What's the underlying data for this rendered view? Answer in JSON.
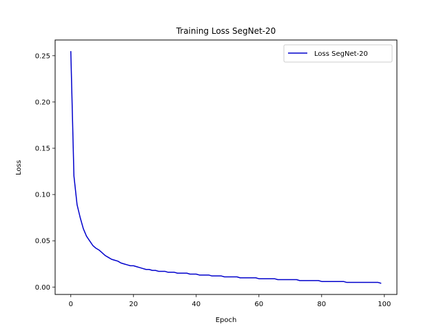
{
  "chart_data": {
    "type": "line",
    "title": "Training Loss SegNet-20",
    "xlabel": "Epoch",
    "ylabel": "Loss",
    "xlim": [
      -5,
      104
    ],
    "ylim": [
      -0.008,
      0.267
    ],
    "xticks": [
      0,
      20,
      40,
      60,
      80,
      100
    ],
    "xtick_labels": [
      "0",
      "20",
      "40",
      "60",
      "80",
      "100"
    ],
    "yticks": [
      0.0,
      0.05,
      0.1,
      0.15,
      0.2,
      0.25
    ],
    "ytick_labels": [
      "0.00",
      "0.05",
      "0.10",
      "0.15",
      "0.20",
      "0.25"
    ],
    "grid": false,
    "legend_position": "top-right",
    "series": [
      {
        "name": "Loss SegNet-20",
        "color": "#0000cc",
        "x": [
          0,
          1,
          2,
          3,
          4,
          5,
          6,
          7,
          8,
          9,
          10,
          11,
          12,
          13,
          14,
          15,
          16,
          17,
          18,
          19,
          20,
          21,
          22,
          23,
          24,
          25,
          26,
          27,
          28,
          29,
          30,
          31,
          32,
          33,
          34,
          35,
          36,
          37,
          38,
          39,
          40,
          41,
          42,
          43,
          44,
          45,
          46,
          47,
          48,
          49,
          50,
          51,
          52,
          53,
          54,
          55,
          56,
          57,
          58,
          59,
          60,
          61,
          62,
          63,
          64,
          65,
          66,
          67,
          68,
          69,
          70,
          71,
          72,
          73,
          74,
          75,
          76,
          77,
          78,
          79,
          80,
          81,
          82,
          83,
          84,
          85,
          86,
          87,
          88,
          89,
          90,
          91,
          92,
          93,
          94,
          95,
          96,
          97,
          98,
          99
        ],
        "values": [
          0.255,
          0.12,
          0.089,
          0.075,
          0.063,
          0.055,
          0.05,
          0.045,
          0.042,
          0.04,
          0.037,
          0.034,
          0.032,
          0.03,
          0.029,
          0.028,
          0.026,
          0.025,
          0.024,
          0.023,
          0.023,
          0.022,
          0.021,
          0.02,
          0.019,
          0.019,
          0.018,
          0.018,
          0.017,
          0.017,
          0.017,
          0.016,
          0.016,
          0.016,
          0.015,
          0.015,
          0.015,
          0.015,
          0.014,
          0.014,
          0.014,
          0.013,
          0.013,
          0.013,
          0.013,
          0.012,
          0.012,
          0.012,
          0.012,
          0.011,
          0.011,
          0.011,
          0.011,
          0.011,
          0.01,
          0.01,
          0.01,
          0.01,
          0.01,
          0.01,
          0.009,
          0.009,
          0.009,
          0.009,
          0.009,
          0.009,
          0.008,
          0.008,
          0.008,
          0.008,
          0.008,
          0.008,
          0.008,
          0.007,
          0.007,
          0.007,
          0.007,
          0.007,
          0.007,
          0.007,
          0.006,
          0.006,
          0.006,
          0.006,
          0.006,
          0.006,
          0.006,
          0.006,
          0.005,
          0.005,
          0.005,
          0.005,
          0.005,
          0.005,
          0.005,
          0.005,
          0.005,
          0.005,
          0.005,
          0.004
        ]
      }
    ]
  }
}
